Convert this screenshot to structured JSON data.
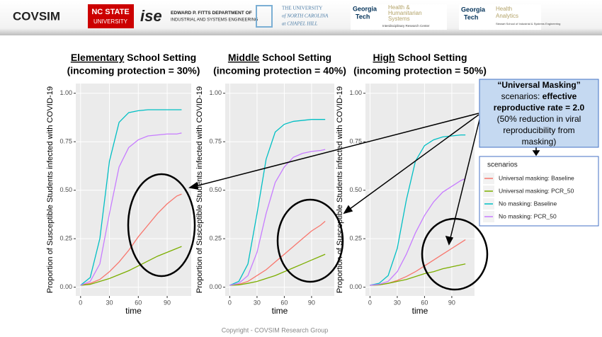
{
  "header": {
    "title": "COVSIM",
    "logos": {
      "ncstate": [
        "NC STATE",
        "UNIVERSITY"
      ],
      "ise": "ise",
      "fitts": [
        "EDWARD P. FITTS DEPARTMENT OF",
        "INDUSTRIAL AND SYSTEMS ENGINEERING"
      ],
      "unc": [
        "THE UNIVERSITY",
        "of NORTH CAROLINA",
        "at CHAPEL HILL"
      ],
      "gt1": {
        "brand": [
          "Georgia",
          "Tech"
        ],
        "name": [
          "Health &",
          "Humanitarian",
          "Systems"
        ],
        "sub": "Interdisciplinary Research Center"
      },
      "gt2": {
        "brand": [
          "Georgia",
          "Tech"
        ],
        "name": [
          "Health",
          "Analytics"
        ],
        "sub": "Stewart School of Industrial & Systems Engineering"
      }
    }
  },
  "chart_data": [
    {
      "type": "line",
      "title_lead": "Elementary",
      "title_rest": " School Setting",
      "subtitle": "(incoming protection = 30%)",
      "x_label": "time",
      "y_label": "Proportion of Susceptible Students infected with COVID-19",
      "x": [
        0,
        10,
        20,
        30,
        40,
        50,
        60,
        70,
        80,
        90,
        100,
        105
      ],
      "xlim": [
        -5,
        115
      ],
      "xticks": [
        0,
        30,
        60,
        90
      ],
      "ylim": [
        -0.045,
        1.05
      ],
      "yticks": [
        {
          "value": 0,
          "label": "0.00"
        },
        {
          "value": 0.25,
          "label": "0.25"
        },
        {
          "value": 0.5,
          "label": "0.50"
        },
        {
          "value": 0.75,
          "label": "0.75"
        },
        {
          "value": 1,
          "label": "1.00"
        }
      ],
      "grid": true,
      "series": [
        {
          "values": [
            0.01,
            0.02,
            0.04,
            0.08,
            0.13,
            0.19,
            0.26,
            0.32,
            0.38,
            0.43,
            0.47,
            0.48
          ]
        },
        {
          "values": [
            0.01,
            0.015,
            0.03,
            0.045,
            0.065,
            0.085,
            0.11,
            0.135,
            0.16,
            0.18,
            0.2,
            0.21
          ]
        },
        {
          "values": [
            0.01,
            0.05,
            0.25,
            0.65,
            0.85,
            0.9,
            0.91,
            0.915,
            0.915,
            0.915,
            0.915,
            0.915
          ]
        },
        {
          "values": [
            0.01,
            0.03,
            0.12,
            0.38,
            0.62,
            0.72,
            0.76,
            0.78,
            0.785,
            0.79,
            0.79,
            0.795
          ]
        }
      ]
    },
    {
      "type": "line",
      "title_lead": "Middle",
      "title_rest": " School Setting",
      "subtitle": "(incoming protection = 40%)",
      "x_label": "time",
      "y_label": "Proportion of Susceptible Students infected with COVID-19",
      "x": [
        0,
        10,
        20,
        30,
        40,
        50,
        60,
        70,
        80,
        90,
        100,
        105
      ],
      "xlim": [
        -5,
        115
      ],
      "xticks": [
        0,
        30,
        60,
        90
      ],
      "ylim": [
        -0.045,
        1.05
      ],
      "yticks": [
        {
          "value": 0,
          "label": "0.00"
        },
        {
          "value": 0.25,
          "label": "0.25"
        },
        {
          "value": 0.5,
          "label": "0.50"
        },
        {
          "value": 0.75,
          "label": "0.75"
        },
        {
          "value": 1,
          "label": "1.00"
        }
      ],
      "grid": true,
      "series": [
        {
          "values": [
            0.01,
            0.015,
            0.03,
            0.06,
            0.09,
            0.13,
            0.17,
            0.21,
            0.25,
            0.29,
            0.32,
            0.34
          ]
        },
        {
          "values": [
            0.01,
            0.012,
            0.02,
            0.03,
            0.045,
            0.06,
            0.08,
            0.1,
            0.12,
            0.14,
            0.16,
            0.17
          ]
        },
        {
          "values": [
            0.01,
            0.03,
            0.12,
            0.38,
            0.66,
            0.8,
            0.84,
            0.855,
            0.86,
            0.865,
            0.865,
            0.865
          ]
        },
        {
          "values": [
            0.01,
            0.02,
            0.06,
            0.18,
            0.38,
            0.54,
            0.62,
            0.67,
            0.69,
            0.7,
            0.705,
            0.71
          ]
        }
      ]
    },
    {
      "type": "line",
      "title_lead": "High",
      "title_rest": " School Setting",
      "subtitle": "(incoming protection = 50%)",
      "x_label": "time",
      "y_label": "Proportion of Susceptible Students infected with COVID-19",
      "x": [
        0,
        10,
        20,
        30,
        40,
        50,
        60,
        70,
        80,
        90,
        100,
        105
      ],
      "xlim": [
        -5,
        115
      ],
      "xticks": [
        0,
        30,
        60,
        90
      ],
      "ylim": [
        -0.045,
        1.05
      ],
      "yticks": [
        {
          "value": 0,
          "label": "0.00"
        },
        {
          "value": 0.25,
          "label": "0.25"
        },
        {
          "value": 0.5,
          "label": "0.50"
        },
        {
          "value": 0.75,
          "label": "0.75"
        },
        {
          "value": 1,
          "label": "1.00"
        }
      ],
      "grid": true,
      "series": [
        {
          "values": [
            0.01,
            0.012,
            0.02,
            0.035,
            0.055,
            0.08,
            0.11,
            0.14,
            0.17,
            0.2,
            0.23,
            0.245
          ]
        },
        {
          "values": [
            0.01,
            0.012,
            0.02,
            0.03,
            0.04,
            0.055,
            0.07,
            0.08,
            0.095,
            0.105,
            0.115,
            0.12
          ]
        },
        {
          "values": [
            0.01,
            0.02,
            0.06,
            0.2,
            0.45,
            0.65,
            0.73,
            0.76,
            0.775,
            0.78,
            0.785,
            0.785
          ]
        },
        {
          "values": [
            0.01,
            0.015,
            0.03,
            0.08,
            0.17,
            0.28,
            0.37,
            0.44,
            0.49,
            0.52,
            0.55,
            0.56
          ]
        }
      ]
    }
  ],
  "legend": {
    "title": "scenarios",
    "items": [
      {
        "name": "Universal masking: Baseline",
        "color": "#F8766D"
      },
      {
        "name": "Universal masking: PCR_50",
        "color": "#7CAE00"
      },
      {
        "name": "No masking: Baseline",
        "color": "#00BFC4"
      },
      {
        "name": "No masking: PCR_50",
        "color": "#C77CFF"
      }
    ]
  },
  "annotation": {
    "lines": [
      [
        {
          "text": "“Universal Masking”",
          "bold": true
        }
      ],
      [
        {
          "text": "scenarios: ",
          "bold": false
        },
        {
          "text": "effective",
          "bold": true
        }
      ],
      [
        {
          "text": "reproductive rate = 2.0",
          "bold": true
        }
      ],
      [
        {
          "text": "(50% reduction in viral",
          "bold": false
        }
      ],
      [
        {
          "text": "reproducibility from",
          "bold": false
        }
      ],
      [
        {
          "text": "masking)",
          "bold": false
        }
      ]
    ]
  },
  "footer": "Copyright - COVSIM Research Group"
}
